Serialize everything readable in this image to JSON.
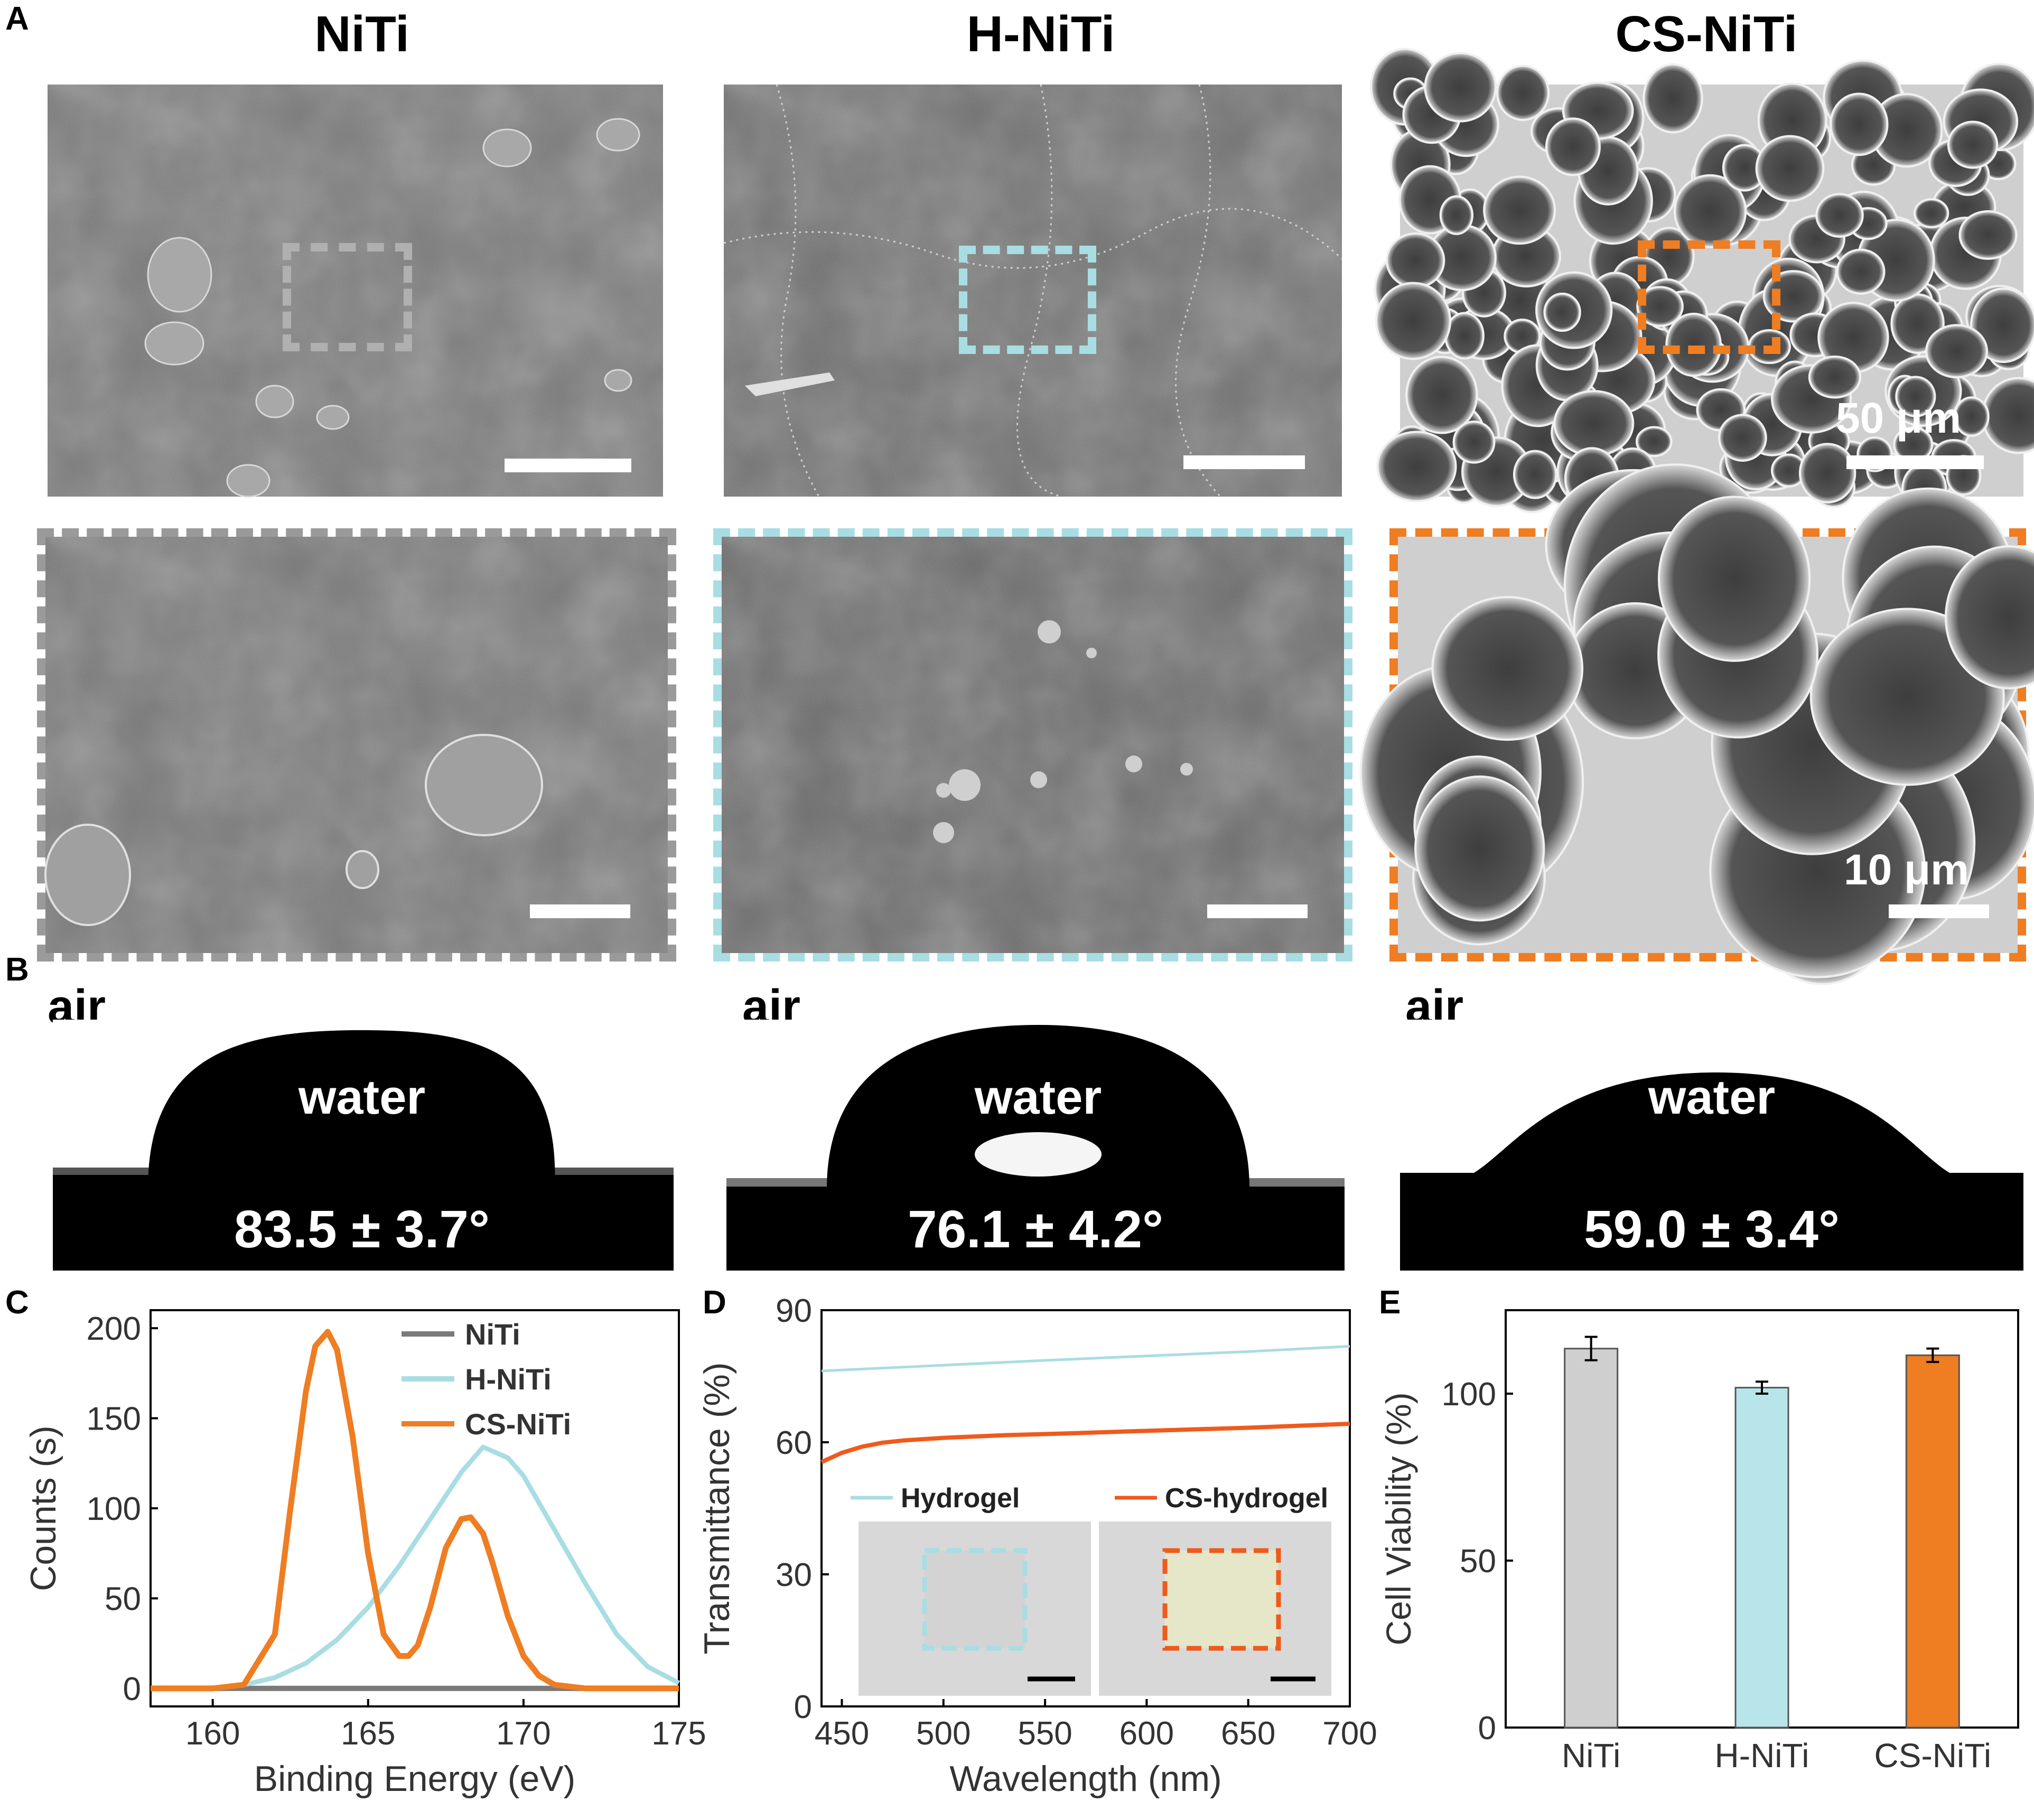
{
  "panel_labels": {
    "A": "A",
    "B": "B",
    "C": "C",
    "D": "D",
    "E": "E"
  },
  "columns": [
    "NiTi",
    "H-NiTi",
    "CS-NiTi"
  ],
  "colors": {
    "niti": "#8c8c8c",
    "h_niti": "#a8dde3",
    "cs_niti": "#ef7d22",
    "drop": "#000000"
  },
  "sem": {
    "scale_top": "50 μm",
    "scale_bottom": "10 μm"
  },
  "contact_angle": {
    "air_label": "air",
    "water_label": "water",
    "angles": [
      "83.5 ± 3.7°",
      "76.1 ± 4.2°",
      "59.0 ± 3.4°"
    ]
  },
  "chart_data": [
    {
      "panel": "C",
      "type": "line",
      "xlabel": "Binding Energy (eV)",
      "ylabel": "Counts (s)",
      "xlim": [
        158,
        175
      ],
      "ylim": [
        -10,
        210
      ],
      "xticks": [
        160,
        165,
        170,
        175
      ],
      "yticks": [
        0,
        50,
        100,
        150,
        200
      ],
      "legend_position": "top-right",
      "series": [
        {
          "name": "NiTi",
          "color": "#7a7a7a",
          "x": [
            158,
            160,
            165,
            170,
            175
          ],
          "y": [
            0,
            0,
            0,
            0,
            0
          ]
        },
        {
          "name": "H-NiTi",
          "color": "#a8dde3",
          "x": [
            158,
            160,
            161,
            162,
            163,
            164,
            165,
            166,
            167,
            168,
            168.7,
            169.5,
            170,
            171,
            172,
            173,
            174,
            175
          ],
          "y": [
            0,
            0,
            2,
            6,
            14,
            27,
            45,
            68,
            94,
            120,
            134,
            128,
            118,
            88,
            58,
            30,
            12,
            3
          ]
        },
        {
          "name": "CS-NiTi",
          "color": "#ef7d22",
          "x": [
            158,
            160,
            161,
            162,
            162.5,
            163,
            163.3,
            163.7,
            164,
            164.5,
            165,
            165.5,
            166,
            166.3,
            166.6,
            167,
            167.5,
            168,
            168.3,
            168.7,
            169,
            169.5,
            170,
            170.5,
            171,
            172,
            173,
            175
          ],
          "y": [
            0,
            0,
            2,
            30,
            100,
            165,
            190,
            198,
            188,
            140,
            75,
            30,
            18,
            18,
            24,
            45,
            78,
            94,
            95,
            86,
            70,
            40,
            18,
            7,
            2,
            0,
            0,
            0
          ]
        }
      ]
    },
    {
      "panel": "D",
      "type": "line",
      "xlabel": "Wavelength (nm)",
      "ylabel": "Transmittance (%)",
      "xlim": [
        440,
        700
      ],
      "ylim": [
        0,
        90
      ],
      "xticks": [
        450,
        500,
        550,
        600,
        650,
        700
      ],
      "yticks": [
        0,
        30,
        60,
        90
      ],
      "legend_position": "bottom",
      "series": [
        {
          "name": "Hydrogel",
          "color": "#a8dde3",
          "x": [
            440,
            500,
            550,
            600,
            650,
            700
          ],
          "y": [
            76.2,
            77.5,
            78.6,
            79.6,
            80.6,
            81.8
          ]
        },
        {
          "name": "CS-hydrogel",
          "color": "#ef5a1d",
          "x": [
            440,
            450,
            460,
            470,
            480,
            500,
            530,
            560,
            600,
            650,
            700
          ],
          "y": [
            55.5,
            57.6,
            59.0,
            59.9,
            60.4,
            61.0,
            61.6,
            62.0,
            62.6,
            63.3,
            64.2
          ]
        }
      ]
    },
    {
      "panel": "E",
      "type": "bar",
      "ylabel": "Cell Viability (%)",
      "ylim": [
        0,
        125
      ],
      "yticks": [
        0,
        50,
        100
      ],
      "categories": [
        "NiTi",
        "H-NiTi",
        "CS-NiTi"
      ],
      "values": [
        113.5,
        101.8,
        111.5
      ],
      "errors": [
        3.5,
        1.8,
        2.0
      ],
      "colors": [
        "#cfcfcf",
        "#b8e5ea",
        "#ef7d22"
      ]
    }
  ]
}
